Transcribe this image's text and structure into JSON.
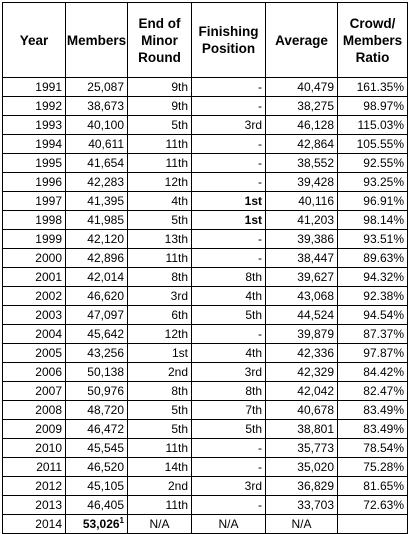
{
  "headers": {
    "year": "Year",
    "members": "Members",
    "minor_round": "End of Minor Round",
    "finishing": "Finishing Position",
    "average": "Average",
    "ratio": "Crowd/ Members Ratio"
  },
  "rows": [
    {
      "year": "1991",
      "members": "25,087",
      "minor": "9th",
      "finish": "-",
      "average": "40,479",
      "ratio": "161.35%"
    },
    {
      "year": "1992",
      "members": "38,673",
      "minor": "9th",
      "finish": "-",
      "average": "38,275",
      "ratio": "98.97%"
    },
    {
      "year": "1993",
      "members": "40,100",
      "minor": "5th",
      "finish": "3rd",
      "average": "46,128",
      "ratio": "115.03%"
    },
    {
      "year": "1994",
      "members": "40,611",
      "minor": "11th",
      "finish": "-",
      "average": "42,864",
      "ratio": "105.55%"
    },
    {
      "year": "1995",
      "members": "41,654",
      "minor": "11th",
      "finish": "-",
      "average": "38,552",
      "ratio": "92.55%"
    },
    {
      "year": "1996",
      "members": "42,283",
      "minor": "12th",
      "finish": "-",
      "average": "39,428",
      "ratio": "93.25%"
    },
    {
      "year": "1997",
      "members": "41,395",
      "minor": "4th",
      "finish": "1st",
      "average": "40,116",
      "ratio": "96.91%",
      "finish_bold": true
    },
    {
      "year": "1998",
      "members": "41,985",
      "minor": "5th",
      "finish": "1st",
      "average": "41,203",
      "ratio": "98.14%",
      "finish_bold": true
    },
    {
      "year": "1999",
      "members": "42,120",
      "minor": "13th",
      "finish": "-",
      "average": "39,386",
      "ratio": "93.51%"
    },
    {
      "year": "2000",
      "members": "42,896",
      "minor": "11th",
      "finish": "-",
      "average": "38,447",
      "ratio": "89.63%"
    },
    {
      "year": "2001",
      "members": "42,014",
      "minor": "8th",
      "finish": "8th",
      "average": "39,627",
      "ratio": "94.32%"
    },
    {
      "year": "2002",
      "members": "46,620",
      "minor": "3rd",
      "finish": "4th",
      "average": "43,068",
      "ratio": "92.38%"
    },
    {
      "year": "2003",
      "members": "47,097",
      "minor": "6th",
      "finish": "5th",
      "average": "44,524",
      "ratio": "94.54%"
    },
    {
      "year": "2004",
      "members": "45,642",
      "minor": "12th",
      "finish": "-",
      "average": "39,879",
      "ratio": "87.37%"
    },
    {
      "year": "2005",
      "members": "43,256",
      "minor": "1st",
      "finish": "4th",
      "average": "42,336",
      "ratio": "97.87%"
    },
    {
      "year": "2006",
      "members": "50,138",
      "minor": "2nd",
      "finish": "3rd",
      "average": "42,329",
      "ratio": "84.42%"
    },
    {
      "year": "2007",
      "members": "50,976",
      "minor": "8th",
      "finish": "8th",
      "average": "42,042",
      "ratio": "82.47%"
    },
    {
      "year": "2008",
      "members": "48,720",
      "minor": "5th",
      "finish": "7th",
      "average": "40,678",
      "ratio": "83.49%"
    },
    {
      "year": "2009",
      "members": "46,472",
      "minor": "5th",
      "finish": "5th",
      "average": "38,801",
      "ratio": "83.49%"
    },
    {
      "year": "2010",
      "members": "45,545",
      "minor": "11th",
      "finish": "-",
      "average": "35,773",
      "ratio": "78.54%"
    },
    {
      "year": "2011",
      "members": "46,520",
      "minor": "14th",
      "finish": "-",
      "average": "35,020",
      "ratio": "75.28%"
    },
    {
      "year": "2012",
      "members": "45,105",
      "minor": "2nd",
      "finish": "3rd",
      "average": "36,829",
      "ratio": "81.65%"
    },
    {
      "year": "2013",
      "members": "46,405",
      "minor": "11th",
      "finish": "-",
      "average": "33,703",
      "ratio": "72.63%"
    },
    {
      "year": "2014",
      "members": "53,026",
      "members_note": "1",
      "members_bold": true,
      "minor": "N/A",
      "finish": "N/A",
      "average": "N/A",
      "ratio": "",
      "na_row": true
    }
  ]
}
